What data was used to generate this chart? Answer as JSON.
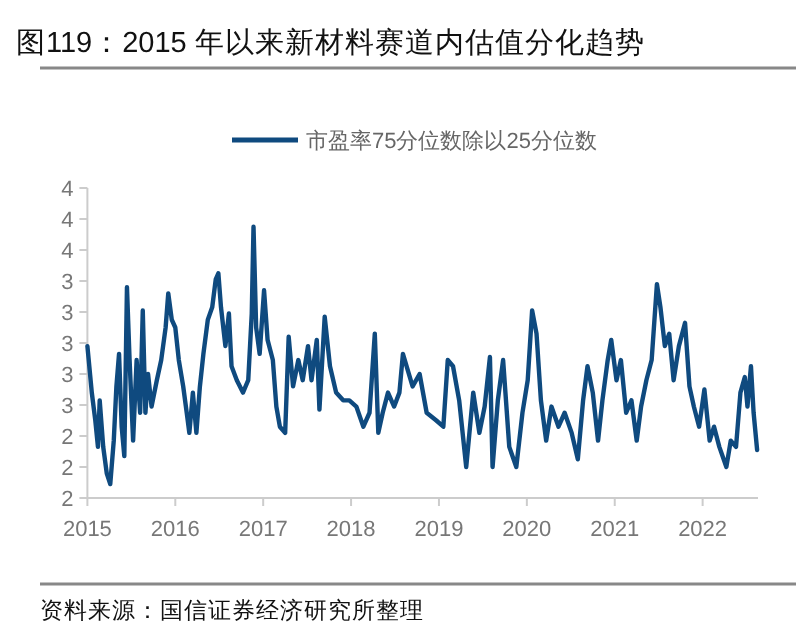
{
  "chart_data": {
    "type": "line",
    "title": "图119：2015 年以来新材料赛道内估值分化趋势",
    "annotations": [
      "资料来源：国信证券经济研究所整理"
    ],
    "xlim": [
      2015,
      2022.63
    ],
    "xticks": [
      2015,
      2016,
      2017,
      2018,
      2019,
      2020,
      2021,
      2022
    ],
    "ylim": [
      2.0,
      4.0
    ],
    "yticks": [
      {
        "value": 2.0,
        "label": "2"
      },
      {
        "value": 2.2,
        "label": "2"
      },
      {
        "value": 2.4,
        "label": "2"
      },
      {
        "value": 2.6,
        "label": "3"
      },
      {
        "value": 2.8,
        "label": "3"
      },
      {
        "value": 3.0,
        "label": "3"
      },
      {
        "value": 3.2,
        "label": "3"
      },
      {
        "value": 3.4,
        "label": "3"
      },
      {
        "value": 3.6,
        "label": "4"
      },
      {
        "value": 3.8,
        "label": "4"
      },
      {
        "value": 4.0,
        "label": "4"
      }
    ],
    "grid": false,
    "legend": "top",
    "line_style": "solid",
    "marker": "none",
    "series": [
      {
        "name": "市盈率75分位数除以25分位数",
        "color": "#0f4a7f",
        "x": [
          2015,
          2015.05,
          2015.09,
          2015.12,
          2015.14,
          2015.18,
          2015.22,
          2015.26,
          2015.3,
          2015.33,
          2015.36,
          2015.39,
          2015.42,
          2015.45,
          2015.48,
          2015.52,
          2015.56,
          2015.6,
          2015.63,
          2015.66,
          2015.69,
          2015.73,
          2015.79,
          2015.84,
          2015.89,
          2015.92,
          2015.96,
          2016.0,
          2016.04,
          2016.09,
          2016.13,
          2016.16,
          2016.2,
          2016.24,
          2016.28,
          2016.32,
          2016.37,
          2016.42,
          2016.46,
          2016.49,
          2016.52,
          2016.57,
          2016.61,
          2016.64,
          2016.7,
          2016.77,
          2016.83,
          2016.87,
          2016.89,
          2016.92,
          2016.96,
          2017.01,
          2017.05,
          2017.11,
          2017.15,
          2017.19,
          2017.25,
          2017.29,
          2017.34,
          2017.4,
          2017.45,
          2017.51,
          2017.55,
          2017.61,
          2017.64,
          2017.7,
          2017.76,
          2017.83,
          2017.91,
          2017.98,
          2018.06,
          2018.14,
          2018.21,
          2018.27,
          2018.31,
          2018.36,
          2018.42,
          2018.49,
          2018.55,
          2018.59,
          2018.7,
          2018.78,
          2018.86,
          2018.97,
          2019.05,
          2019.1,
          2019.16,
          2019.23,
          2019.31,
          2019.39,
          2019.46,
          2019.52,
          2019.58,
          2019.61,
          2019.67,
          2019.73,
          2019.8,
          2019.88,
          2019.95,
          2020.01,
          2020.06,
          2020.11,
          2020.16,
          2020.22,
          2020.28,
          2020.36,
          2020.43,
          2020.51,
          2020.58,
          2020.64,
          2020.69,
          2020.75,
          2020.81,
          2020.86,
          2020.92,
          2020.96,
          2021.02,
          2021.07,
          2021.13,
          2021.19,
          2021.25,
          2021.3,
          2021.36,
          2021.42,
          2021.48,
          2021.52,
          2021.57,
          2021.62,
          2021.67,
          2021.73,
          2021.8,
          2021.85,
          2021.9,
          2021.96,
          2022.02,
          2022.08,
          2022.13,
          2022.19,
          2022.27,
          2022.32,
          2022.38,
          2022.43,
          2022.48,
          2022.51,
          2022.55,
          2022.58,
          2022.62
        ],
        "values": [
          2.98,
          2.68,
          2.5,
          2.33,
          2.63,
          2.33,
          2.16,
          2.09,
          2.37,
          2.72,
          2.93,
          2.46,
          2.27,
          3.36,
          2.89,
          2.37,
          2.89,
          2.55,
          3.21,
          2.55,
          2.8,
          2.59,
          2.76,
          2.89,
          3.1,
          3.32,
          3.15,
          3.1,
          2.89,
          2.72,
          2.55,
          2.42,
          2.68,
          2.42,
          2.72,
          2.93,
          3.15,
          3.23,
          3.41,
          3.45,
          3.23,
          2.98,
          3.19,
          2.85,
          2.76,
          2.68,
          2.76,
          3.19,
          3.75,
          3.1,
          2.93,
          3.34,
          3.02,
          2.89,
          2.59,
          2.46,
          2.42,
          3.04,
          2.72,
          2.89,
          2.76,
          2.98,
          2.76,
          3.02,
          2.57,
          3.17,
          2.85,
          2.68,
          2.63,
          2.63,
          2.59,
          2.46,
          2.55,
          3.06,
          2.42,
          2.55,
          2.68,
          2.59,
          2.68,
          2.93,
          2.72,
          2.8,
          2.55,
          2.5,
          2.46,
          2.89,
          2.85,
          2.63,
          2.2,
          2.68,
          2.42,
          2.59,
          2.91,
          2.2,
          2.63,
          2.89,
          2.33,
          2.2,
          2.55,
          2.76,
          3.21,
          3.06,
          2.63,
          2.37,
          2.59,
          2.46,
          2.55,
          2.42,
          2.25,
          2.63,
          2.85,
          2.68,
          2.37,
          2.63,
          2.89,
          3.02,
          2.76,
          2.89,
          2.55,
          2.63,
          2.37,
          2.59,
          2.76,
          2.89,
          3.38,
          3.23,
          2.98,
          3.06,
          2.76,
          2.98,
          3.13,
          2.72,
          2.59,
          2.46,
          2.7,
          2.37,
          2.46,
          2.33,
          2.2,
          2.37,
          2.33,
          2.68,
          2.78,
          2.59,
          2.85,
          2.55,
          2.31
        ]
      }
    ]
  }
}
